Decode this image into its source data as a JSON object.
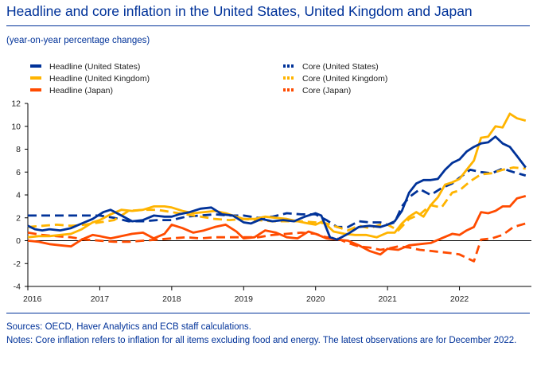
{
  "header": {
    "title": "Headline and core inflation in the United States, United Kingdom and Japan",
    "subtitle": "(year-on-year percentage changes)"
  },
  "footer": {
    "sources": "Sources: OECD, Haver Analytics and ECB staff calculations.",
    "notes": "Notes: Core inflation refers to inflation for all items excluding food and energy. The latest observations are for December 2022."
  },
  "chart_data": {
    "type": "line",
    "ylim": [
      -4,
      12
    ],
    "yticks": [
      -4,
      -2,
      0,
      2,
      4,
      6,
      8,
      10,
      12
    ],
    "xlim": [
      2016.0,
      2023.0
    ],
    "xticks": [
      {
        "value": 2016,
        "label": "2016"
      },
      {
        "value": 2017,
        "label": "2017"
      },
      {
        "value": 2018,
        "label": "2018"
      },
      {
        "value": 2019,
        "label": "2019"
      },
      {
        "value": 2020,
        "label": "2020"
      },
      {
        "value": 2021,
        "label": "2021"
      },
      {
        "value": 2022,
        "label": "2022"
      }
    ],
    "legend_position": "top",
    "series": [
      {
        "name": "Headline (United States)",
        "color": "#003299",
        "style": "solid",
        "x": [
          2016.0,
          2016.1,
          2016.2,
          2016.3,
          2016.45,
          2016.6,
          2016.75,
          2016.9,
          2017.05,
          2017.15,
          2017.3,
          2017.45,
          2017.6,
          2017.75,
          2017.9,
          2018.0,
          2018.1,
          2018.25,
          2018.4,
          2018.55,
          2018.7,
          2018.85,
          2019.0,
          2019.1,
          2019.25,
          2019.4,
          2019.55,
          2019.7,
          2019.85,
          2020.0,
          2020.08,
          2020.2,
          2020.3,
          2020.45,
          2020.6,
          2020.75,
          2020.9,
          2021.0,
          2021.1,
          2021.2,
          2021.3,
          2021.4,
          2021.5,
          2021.6,
          2021.7,
          2021.8,
          2021.9,
          2022.0,
          2022.1,
          2022.2,
          2022.3,
          2022.4,
          2022.5,
          2022.6,
          2022.7,
          2022.8,
          2022.92
        ],
        "y": [
          1.3,
          1.0,
          0.9,
          1.0,
          0.9,
          1.1,
          1.5,
          1.9,
          2.5,
          2.7,
          2.2,
          1.7,
          1.8,
          2.2,
          2.1,
          2.1,
          2.3,
          2.5,
          2.8,
          2.9,
          2.3,
          2.2,
          1.6,
          1.5,
          1.9,
          1.7,
          1.8,
          1.7,
          2.1,
          2.4,
          2.2,
          0.3,
          0.1,
          0.6,
          1.2,
          1.3,
          1.2,
          1.4,
          1.7,
          2.6,
          4.2,
          5.0,
          5.3,
          5.3,
          5.4,
          6.2,
          6.8,
          7.1,
          7.8,
          8.2,
          8.5,
          8.6,
          9.1,
          8.5,
          8.2,
          7.4,
          6.4
        ]
      },
      {
        "name": "Headline (United Kingdom)",
        "color": "#FFB400",
        "style": "solid",
        "x": [
          2016.0,
          2016.15,
          2016.3,
          2016.45,
          2016.6,
          2016.75,
          2016.9,
          2017.0,
          2017.15,
          2017.3,
          2017.45,
          2017.6,
          2017.75,
          2017.9,
          2018.0,
          2018.15,
          2018.3,
          2018.45,
          2018.6,
          2018.75,
          2018.9,
          2019.0,
          2019.15,
          2019.3,
          2019.45,
          2019.6,
          2019.75,
          2019.9,
          2020.0,
          2020.1,
          2020.25,
          2020.4,
          2020.55,
          2020.7,
          2020.85,
          2021.0,
          2021.1,
          2021.2,
          2021.3,
          2021.4,
          2021.5,
          2021.6,
          2021.7,
          2021.8,
          2021.9,
          2022.0,
          2022.1,
          2022.2,
          2022.3,
          2022.4,
          2022.5,
          2022.6,
          2022.7,
          2022.8,
          2022.92
        ],
        "y": [
          0.3,
          0.4,
          0.4,
          0.5,
          0.6,
          1.0,
          1.6,
          1.8,
          2.3,
          2.7,
          2.6,
          2.7,
          3.0,
          3.0,
          2.9,
          2.6,
          2.4,
          2.5,
          2.6,
          2.4,
          2.1,
          1.9,
          1.9,
          2.1,
          2.0,
          1.9,
          1.7,
          1.5,
          1.4,
          1.7,
          0.8,
          0.6,
          0.5,
          0.5,
          0.3,
          0.7,
          0.7,
          1.5,
          2.1,
          2.5,
          2.1,
          3.1,
          3.8,
          4.9,
          5.1,
          5.4,
          6.2,
          7.0,
          9.0,
          9.1,
          10.0,
          9.9,
          11.1,
          10.7,
          10.5
        ]
      },
      {
        "name": "Headline (Japan)",
        "color": "#FF4B00",
        "style": "solid",
        "x": [
          2016.0,
          2016.15,
          2016.3,
          2016.45,
          2016.6,
          2016.75,
          2016.9,
          2017.0,
          2017.15,
          2017.3,
          2017.45,
          2017.6,
          2017.75,
          2017.9,
          2018.0,
          2018.15,
          2018.3,
          2018.45,
          2018.6,
          2018.75,
          2018.9,
          2019.0,
          2019.15,
          2019.3,
          2019.45,
          2019.6,
          2019.75,
          2019.9,
          2020.0,
          2020.15,
          2020.3,
          2020.45,
          2020.6,
          2020.75,
          2020.9,
          2021.0,
          2021.15,
          2021.3,
          2021.45,
          2021.6,
          2021.75,
          2021.9,
          2022.0,
          2022.1,
          2022.2,
          2022.3,
          2022.4,
          2022.5,
          2022.6,
          2022.7,
          2022.8,
          2022.92
        ],
        "y": [
          0.0,
          -0.1,
          -0.3,
          -0.4,
          -0.5,
          0.1,
          0.5,
          0.4,
          0.2,
          0.4,
          0.6,
          0.7,
          0.2,
          0.6,
          1.4,
          1.1,
          0.7,
          0.9,
          1.2,
          1.4,
          0.8,
          0.2,
          0.3,
          0.9,
          0.7,
          0.3,
          0.2,
          0.8,
          0.6,
          0.2,
          0.1,
          0.0,
          -0.4,
          -0.9,
          -1.2,
          -0.7,
          -0.8,
          -0.4,
          -0.3,
          -0.2,
          0.2,
          0.6,
          0.5,
          0.9,
          1.2,
          2.5,
          2.4,
          2.6,
          3.0,
          3.0,
          3.7,
          3.9
        ]
      },
      {
        "name": "Core (United States)",
        "color": "#003299",
        "style": "dashed",
        "x": [
          2016.0,
          2016.2,
          2016.4,
          2016.6,
          2016.8,
          2017.0,
          2017.2,
          2017.4,
          2017.6,
          2017.8,
          2018.0,
          2018.2,
          2018.4,
          2018.6,
          2018.8,
          2019.0,
          2019.2,
          2019.4,
          2019.6,
          2019.8,
          2020.0,
          2020.15,
          2020.3,
          2020.45,
          2020.6,
          2020.75,
          2020.9,
          2021.0,
          2021.1,
          2021.2,
          2021.3,
          2021.45,
          2021.6,
          2021.75,
          2021.9,
          2022.0,
          2022.15,
          2022.3,
          2022.45,
          2022.6,
          2022.75,
          2022.92
        ],
        "y": [
          2.2,
          2.2,
          2.2,
          2.2,
          2.2,
          2.2,
          2.0,
          1.7,
          1.7,
          1.8,
          1.8,
          2.1,
          2.2,
          2.3,
          2.2,
          2.2,
          2.0,
          2.1,
          2.4,
          2.3,
          2.3,
          1.8,
          1.2,
          1.2,
          1.7,
          1.6,
          1.6,
          1.4,
          1.6,
          3.0,
          3.8,
          4.5,
          4.0,
          4.6,
          5.0,
          5.5,
          6.2,
          6.0,
          5.9,
          6.3,
          6.0,
          5.7
        ]
      },
      {
        "name": "Core (United Kingdom)",
        "color": "#FFB400",
        "style": "dashed",
        "x": [
          2016.0,
          2016.2,
          2016.4,
          2016.6,
          2016.8,
          2017.0,
          2017.2,
          2017.4,
          2017.6,
          2017.8,
          2018.0,
          2018.2,
          2018.4,
          2018.6,
          2018.8,
          2019.0,
          2019.2,
          2019.4,
          2019.6,
          2019.8,
          2020.0,
          2020.15,
          2020.3,
          2020.45,
          2020.6,
          2020.75,
          2020.9,
          2021.0,
          2021.15,
          2021.3,
          2021.45,
          2021.6,
          2021.75,
          2021.9,
          2022.0,
          2022.15,
          2022.3,
          2022.45,
          2022.6,
          2022.75,
          2022.92
        ],
        "y": [
          1.2,
          1.3,
          1.4,
          1.3,
          1.4,
          1.6,
          1.8,
          2.6,
          2.7,
          2.7,
          2.5,
          2.3,
          2.1,
          1.9,
          1.8,
          1.9,
          1.8,
          1.7,
          1.7,
          1.7,
          1.6,
          1.5,
          1.2,
          0.9,
          1.3,
          1.1,
          1.4,
          1.4,
          0.9,
          1.9,
          2.3,
          3.1,
          2.9,
          4.2,
          4.4,
          5.2,
          5.8,
          5.9,
          6.2,
          6.4,
          6.3
        ]
      },
      {
        "name": "Core (Japan)",
        "color": "#FF4B00",
        "style": "dashed",
        "x": [
          2016.0,
          2016.2,
          2016.4,
          2016.6,
          2016.8,
          2017.0,
          2017.2,
          2017.4,
          2017.6,
          2017.8,
          2018.0,
          2018.2,
          2018.4,
          2018.6,
          2018.8,
          2019.0,
          2019.2,
          2019.4,
          2019.6,
          2019.8,
          2020.0,
          2020.15,
          2020.3,
          2020.45,
          2020.6,
          2020.75,
          2020.9,
          2021.0,
          2021.15,
          2021.3,
          2021.45,
          2021.6,
          2021.75,
          2021.9,
          2022.0,
          2022.1,
          2022.2,
          2022.3,
          2022.45,
          2022.6,
          2022.75,
          2022.92
        ],
        "y": [
          0.7,
          0.5,
          0.4,
          0.3,
          0.1,
          0.0,
          -0.1,
          -0.1,
          0.0,
          0.1,
          0.2,
          0.3,
          0.2,
          0.3,
          0.3,
          0.3,
          0.3,
          0.5,
          0.6,
          0.7,
          0.6,
          0.3,
          0.2,
          -0.2,
          -0.5,
          -0.6,
          -0.8,
          -0.7,
          -0.5,
          -0.6,
          -0.8,
          -0.9,
          -1.0,
          -1.1,
          -1.2,
          -1.5,
          -1.8,
          0.1,
          0.2,
          0.5,
          1.2,
          1.5
        ]
      }
    ]
  }
}
